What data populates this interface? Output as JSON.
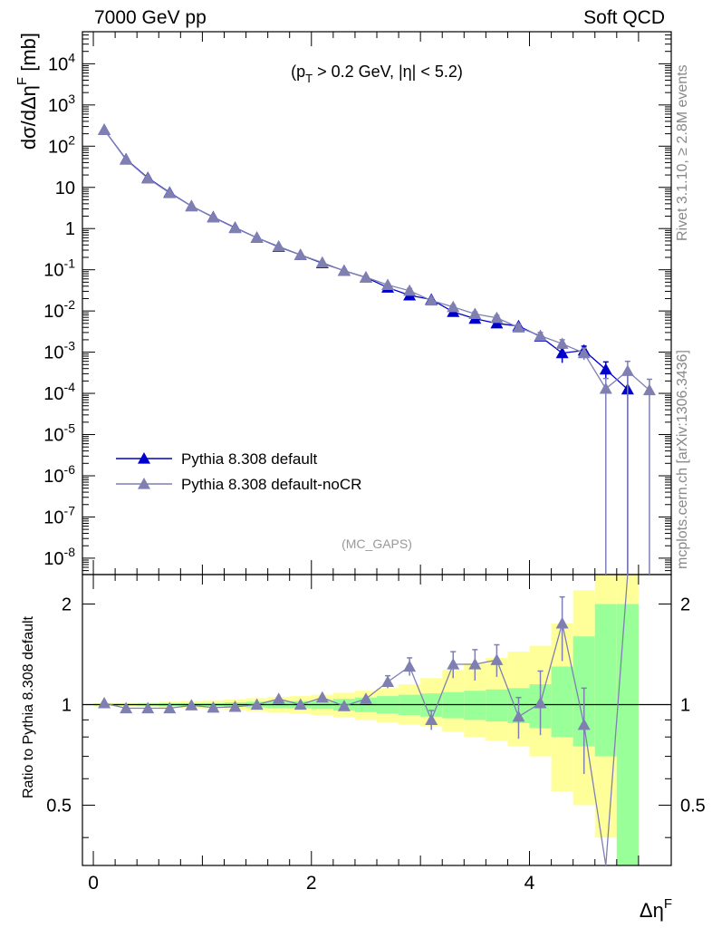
{
  "header": {
    "left": "7000 GeV pp",
    "right": "Soft QCD"
  },
  "side_labels": {
    "rivet": "Rivet 3.1.10, ≥ 2.8M events",
    "source": "mcplots.cern.ch [arXiv:1306.3436]"
  },
  "colors": {
    "default": "#0000cc",
    "nocr": "#7f7fb2",
    "band_inner": "#99ff99",
    "band_outer": "#ffff99"
  },
  "chart_data": [
    {
      "type": "line",
      "name": "main",
      "cut_label": "(p_T > 0.2 GeV, |η| < 5.2)",
      "analysis_label": "(MC_GAPS)",
      "ylabel": "dσ/dΔη^F [mb]",
      "yscale": "log",
      "ylim": [
        4e-09,
        60000
      ],
      "xlim": [
        -0.1,
        5.3
      ],
      "ytick_labels": [
        "10^4",
        "10^3",
        "10^2",
        "10",
        "1",
        "10^-1",
        "10^-2",
        "10^-3",
        "10^-4",
        "10^-5",
        "10^-6",
        "10^-7",
        "10^-8"
      ],
      "legend": {
        "position": "lower-left",
        "entries": [
          "Pythia 8.308 default",
          "Pythia 8.308 default-noCR"
        ]
      },
      "x": [
        0.1,
        0.3,
        0.5,
        0.7,
        0.9,
        1.1,
        1.3,
        1.5,
        1.7,
        1.9,
        2.1,
        2.3,
        2.5,
        2.7,
        2.9,
        3.1,
        3.3,
        3.5,
        3.7,
        3.9,
        4.1,
        4.3,
        4.5,
        4.7,
        4.9,
        5.1
      ],
      "series": [
        {
          "name": "Pythia 8.308 default",
          "values": [
            250,
            48,
            17,
            7.5,
            3.5,
            1.9,
            1.05,
            0.6,
            0.36,
            0.23,
            0.145,
            0.095,
            0.065,
            0.037,
            0.024,
            0.019,
            0.0095,
            0.0065,
            0.005,
            0.0043,
            0.0024,
            0.00095,
            0.0011,
            0.00038,
            0.000125,
            null
          ],
          "err_lo": [
            0,
            0,
            0,
            0,
            0,
            0,
            0,
            0,
            0,
            0,
            0,
            0,
            0,
            0,
            0,
            0,
            0,
            0,
            0,
            0,
            0,
            0.0004,
            0.0003,
            0.00015,
            0.000125,
            0
          ],
          "err_hi": [
            0,
            0,
            0,
            0,
            0,
            0,
            0,
            0,
            0,
            0,
            0,
            0,
            0,
            0,
            0,
            0,
            0,
            0,
            0,
            0,
            0,
            0.0003,
            0.0003,
            0.0002,
            0.00017,
            0
          ]
        },
        {
          "name": "Pythia 8.308 default-noCR",
          "values": [
            250,
            47,
            16.5,
            7.3,
            3.5,
            1.87,
            1.03,
            0.6,
            0.37,
            0.23,
            0.15,
            0.094,
            0.066,
            0.043,
            0.031,
            0.018,
            0.0125,
            0.0085,
            0.0068,
            0.004,
            0.0025,
            0.0016,
            0.00095,
            0.00013,
            0.00035,
            0.00012
          ],
          "err_lo": [
            0,
            0,
            0,
            0,
            0,
            0,
            0,
            0,
            0,
            0,
            0,
            0,
            0,
            0,
            0.004,
            0.002,
            0.0015,
            0.001,
            0.001,
            0.0007,
            0.0005,
            0.0004,
            0.0003,
            0.00013,
            0.00035,
            0.00012
          ],
          "err_hi": [
            0,
            0,
            0,
            0,
            0,
            0,
            0,
            0,
            0,
            0,
            0,
            0,
            0,
            0,
            0.004,
            0.002,
            0.0015,
            0.001,
            0.001,
            0.0007,
            0.0005,
            0.0004,
            0.0003,
            0.0001,
            0.00025,
            0.0001
          ]
        }
      ]
    },
    {
      "type": "line",
      "name": "ratio",
      "ylabel": "Ratio to Pythia 8.308 default",
      "xlabel": "Δη^F",
      "ylim": [
        0.33,
        2.45
      ],
      "xlim": [
        -0.1,
        5.3
      ],
      "reference_line": 1,
      "yticks": [
        0.5,
        1,
        2
      ],
      "ytick_labels": [
        "0.5",
        "1",
        "2"
      ],
      "xticks": [
        0,
        2,
        4
      ],
      "xtick_labels": [
        "0",
        "2",
        "4"
      ],
      "bands": {
        "edges": [
          0.0,
          0.2,
          0.4,
          0.6,
          0.8,
          1.0,
          1.2,
          1.4,
          1.6,
          1.8,
          2.0,
          2.2,
          2.4,
          2.6,
          2.8,
          3.0,
          3.2,
          3.4,
          3.6,
          3.8,
          4.0,
          4.2,
          4.4,
          4.6,
          4.8,
          5.0
        ],
        "inner_lo": [
          0.995,
          0.995,
          0.993,
          0.99,
          0.99,
          0.99,
          0.985,
          0.98,
          0.975,
          0.975,
          0.97,
          0.96,
          0.95,
          0.94,
          0.93,
          0.92,
          0.91,
          0.9,
          0.89,
          0.88,
          0.85,
          0.8,
          0.75,
          0.7,
          0.33
        ],
        "inner_hi": [
          1.005,
          1.005,
          1.007,
          1.01,
          1.01,
          1.01,
          1.015,
          1.02,
          1.025,
          1.025,
          1.03,
          1.04,
          1.05,
          1.06,
          1.07,
          1.08,
          1.09,
          1.1,
          1.11,
          1.12,
          1.15,
          1.3,
          1.6,
          2.0,
          2.0
        ],
        "outer_lo": [
          0.99,
          0.99,
          0.985,
          0.98,
          0.975,
          0.97,
          0.965,
          0.955,
          0.945,
          0.94,
          0.93,
          0.915,
          0.9,
          0.885,
          0.87,
          0.86,
          0.83,
          0.8,
          0.78,
          0.75,
          0.7,
          0.55,
          0.5,
          0.4,
          0.33
        ],
        "outer_hi": [
          1.01,
          1.01,
          1.015,
          1.02,
          1.025,
          1.03,
          1.035,
          1.045,
          1.055,
          1.06,
          1.07,
          1.085,
          1.1,
          1.12,
          1.15,
          1.2,
          1.27,
          1.33,
          1.38,
          1.44,
          1.5,
          1.75,
          2.2,
          2.45,
          2.45
        ]
      },
      "series": [
        {
          "name": "Pythia 8.308 default-noCR",
          "values": [
            1.01,
            0.975,
            0.975,
            0.975,
            0.995,
            0.98,
            0.985,
            1.0,
            1.04,
            1.0,
            1.05,
            0.99,
            1.04,
            1.17,
            1.3,
            0.9,
            1.32,
            1.32,
            1.36,
            0.92,
            1.01,
            1.75,
            0.87,
            0.33,
            2.45,
            null
          ],
          "err_lo": [
            0,
            0,
            0,
            0,
            0,
            0,
            0,
            0,
            0,
            0,
            0,
            0,
            0,
            0.05,
            0.08,
            0.06,
            0.12,
            0.14,
            0.15,
            0.13,
            0.2,
            0.4,
            0.25,
            0,
            0,
            0
          ],
          "err_hi": [
            0,
            0,
            0,
            0,
            0,
            0,
            0,
            0,
            0,
            0,
            0,
            0,
            0,
            0.05,
            0.08,
            0.06,
            0.12,
            0.14,
            0.15,
            0.13,
            0.25,
            0.35,
            0.25,
            0,
            0,
            0
          ]
        }
      ]
    }
  ]
}
